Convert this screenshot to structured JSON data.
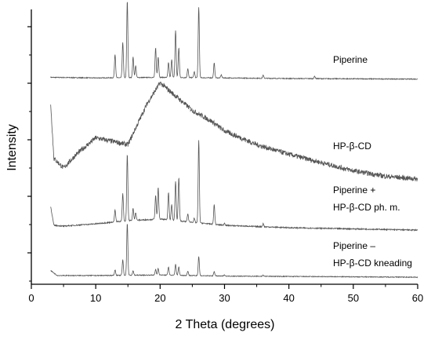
{
  "chart_data": {
    "type": "line",
    "title": "",
    "xlabel": "2 Theta (degrees)",
    "ylabel": "Intensity",
    "xlim": [
      0,
      60
    ],
    "xticks": [
      "0",
      "10",
      "20",
      "30",
      "40",
      "50",
      "60"
    ],
    "y_tick_labels": "none",
    "grid": false,
    "legend": "none",
    "line_color": "#555555",
    "annotations": [
      {
        "lines": [
          "Piperine"
        ],
        "series": "Piperine"
      },
      {
        "lines": [
          "HP-β-CD"
        ],
        "series": "HP-β-CD"
      },
      {
        "lines": [
          "Piperine +",
          "HP-β-CD ph. m."
        ],
        "series": "Piperine + HP-β-CD ph. m."
      },
      {
        "lines": [
          "Piperine –",
          "HP-β-CD kneading"
        ],
        "series": "Piperine – HP-β-CD kneading"
      }
    ],
    "series": [
      {
        "name": "Piperine",
        "baseline": [
          [
            3,
            0.06
          ],
          [
            10,
            0.05
          ],
          [
            20,
            0.06
          ],
          [
            30,
            0.05
          ],
          [
            40,
            0.04
          ],
          [
            60,
            0.03
          ]
        ],
        "peaks": [
          [
            13.0,
            0.4
          ],
          [
            14.2,
            0.6
          ],
          [
            14.9,
            1.3
          ],
          [
            15.8,
            0.35
          ],
          [
            16.2,
            0.2
          ],
          [
            19.3,
            0.5
          ],
          [
            19.7,
            0.35
          ],
          [
            21.3,
            0.25
          ],
          [
            21.8,
            0.3
          ],
          [
            22.4,
            0.8
          ],
          [
            22.9,
            0.5
          ],
          [
            24.3,
            0.15
          ],
          [
            25.3,
            0.1
          ],
          [
            26.0,
            1.2
          ],
          [
            28.4,
            0.25
          ],
          [
            29.5,
            0.05
          ],
          [
            36.0,
            0.05
          ],
          [
            44.0,
            0.04
          ]
        ]
      },
      {
        "name": "HP-β-CD",
        "baseline": [
          [
            3,
            0.55
          ],
          [
            3.5,
            0.15
          ],
          [
            5,
            0.08
          ],
          [
            7,
            0.18
          ],
          [
            10,
            0.3
          ],
          [
            12,
            0.28
          ],
          [
            15,
            0.25
          ],
          [
            18,
            0.55
          ],
          [
            20,
            0.7
          ],
          [
            22,
            0.62
          ],
          [
            25,
            0.5
          ],
          [
            28,
            0.42
          ],
          [
            30,
            0.35
          ],
          [
            35,
            0.25
          ],
          [
            40,
            0.18
          ],
          [
            45,
            0.12
          ],
          [
            50,
            0.06
          ],
          [
            55,
            0.02
          ],
          [
            60,
            0.0
          ]
        ],
        "peaks": []
      },
      {
        "name": "Piperine + HP-β-CD ph. m.",
        "baseline": [
          [
            3,
            0.3
          ],
          [
            3.5,
            0.06
          ],
          [
            5,
            0.05
          ],
          [
            10,
            0.08
          ],
          [
            15,
            0.12
          ],
          [
            20,
            0.14
          ],
          [
            25,
            0.1
          ],
          [
            30,
            0.06
          ],
          [
            40,
            0.03
          ],
          [
            60,
            0.0
          ]
        ],
        "peaks": [
          [
            13.0,
            0.15
          ],
          [
            14.2,
            0.35
          ],
          [
            14.9,
            0.85
          ],
          [
            15.8,
            0.15
          ],
          [
            16.2,
            0.1
          ],
          [
            19.3,
            0.3
          ],
          [
            19.7,
            0.4
          ],
          [
            21.3,
            0.35
          ],
          [
            21.8,
            0.2
          ],
          [
            22.4,
            0.5
          ],
          [
            22.9,
            0.55
          ],
          [
            24.3,
            0.1
          ],
          [
            25.3,
            0.05
          ],
          [
            26.0,
            1.05
          ],
          [
            28.4,
            0.25
          ],
          [
            30.0,
            0.03
          ],
          [
            36.0,
            0.04
          ]
        ]
      },
      {
        "name": "Piperine – HP-β-CD kneading",
        "baseline": [
          [
            3,
            0.12
          ],
          [
            4,
            0.03
          ],
          [
            10,
            0.03
          ],
          [
            20,
            0.04
          ],
          [
            30,
            0.02
          ],
          [
            60,
            0.0
          ]
        ],
        "peaks": [
          [
            13.0,
            0.1
          ],
          [
            14.2,
            0.28
          ],
          [
            14.9,
            0.95
          ],
          [
            15.8,
            0.08
          ],
          [
            19.3,
            0.1
          ],
          [
            19.7,
            0.12
          ],
          [
            21.3,
            0.15
          ],
          [
            22.4,
            0.2
          ],
          [
            22.9,
            0.15
          ],
          [
            24.3,
            0.08
          ],
          [
            26.0,
            0.35
          ],
          [
            28.4,
            0.08
          ],
          [
            30.0,
            0.02
          ],
          [
            36.0,
            0.02
          ]
        ]
      }
    ]
  }
}
